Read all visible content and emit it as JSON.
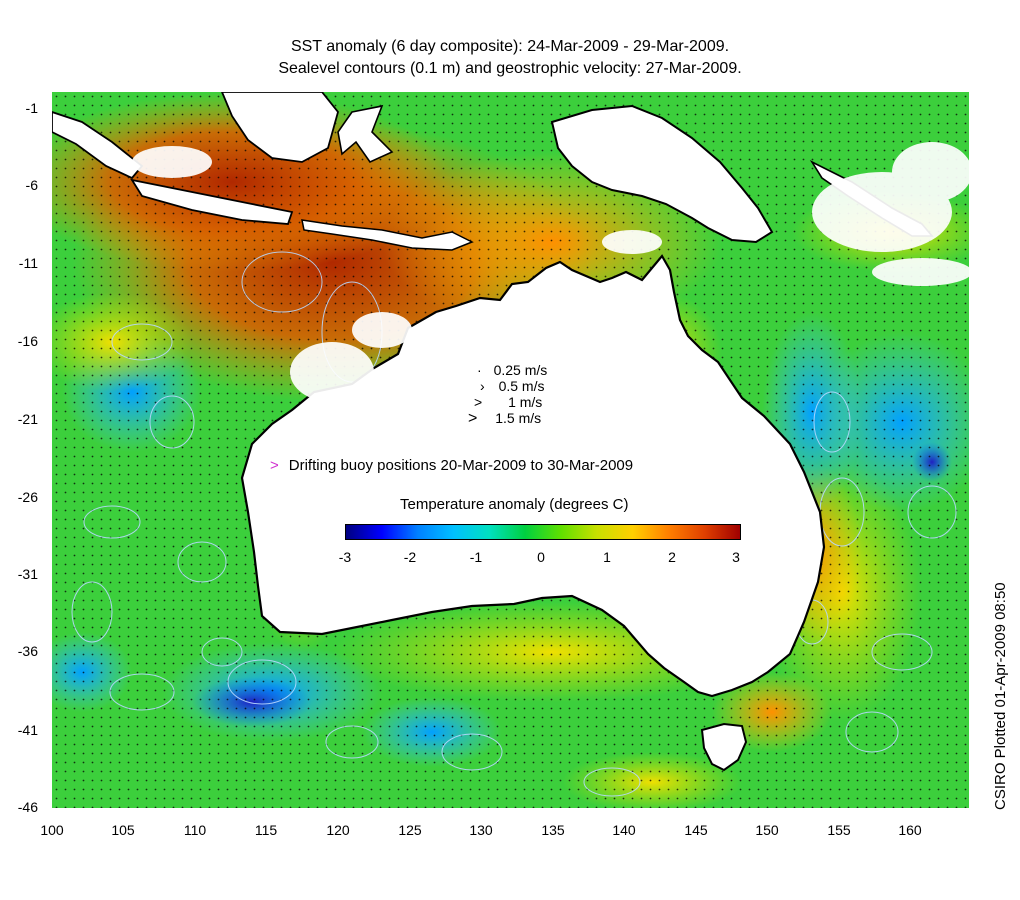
{
  "title": {
    "line1": "SST anomaly (6 day composite): 24-Mar-2009 - 29-Mar-2009.",
    "line2": "Sealevel contours (0.1 m) and geostrophic velocity: 27-Mar-2009."
  },
  "map": {
    "lon_range": [
      100,
      164
    ],
    "lat_range": [
      -46,
      1
    ],
    "x_ticks": [
      "100",
      "105",
      "110",
      "115",
      "120",
      "125",
      "130",
      "135",
      "140",
      "145",
      "150",
      "155",
      "160"
    ],
    "y_ticks": [
      "-1",
      "-6",
      "-11",
      "-16",
      "-21",
      "-26",
      "-31",
      "-36",
      "-41",
      "-46"
    ],
    "land_color": "#ffffff",
    "coast_color": "#000000",
    "contour_color": "#b8d8ff"
  },
  "velocity_legend": [
    {
      "label": "0.25 m/s",
      "glyph": "·"
    },
    {
      "label": "0.5 m/s",
      "glyph": "›"
    },
    {
      "label": "1 m/s",
      "glyph": ">"
    },
    {
      "label": "1.5 m/s",
      "glyph": ">"
    }
  ],
  "buoy_legend": {
    "marker": ">",
    "label": "Drifting buoy positions 20-Mar-2009 to 30-Mar-2009",
    "color": "#d030d0"
  },
  "colorbar": {
    "title": "Temperature anomaly (degrees C)",
    "range": [
      -3,
      3
    ],
    "ticks": [
      "-3",
      "-2",
      "-1",
      "0",
      "1",
      "2",
      "3"
    ],
    "colors": [
      "#000080",
      "#0000ff",
      "#0080ff",
      "#00c0ff",
      "#00e0c0",
      "#00d040",
      "#60e000",
      "#c8e000",
      "#ffd000",
      "#ff8000",
      "#e04000",
      "#a00000"
    ]
  },
  "credit": "CSIRO Plotted 01-Apr-2009 08:50"
}
